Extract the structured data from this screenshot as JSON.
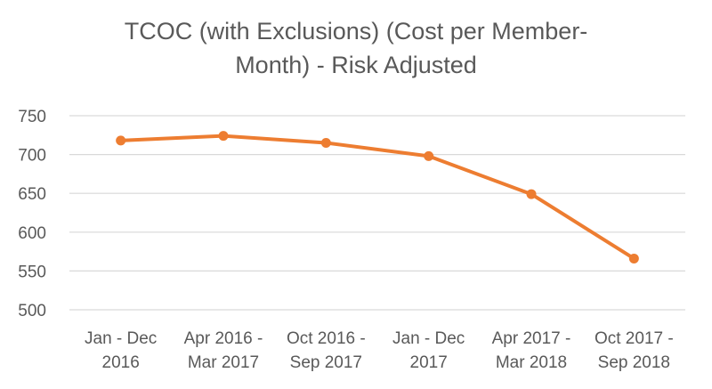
{
  "chart_data": {
    "type": "line",
    "title_lines": [
      "TCOC (with Exclusions) (Cost per Member-",
      "Month) - Risk Adjusted"
    ],
    "categories": [
      [
        "Jan - Dec",
        "2016"
      ],
      [
        "Apr 2016 -",
        "Mar 2017"
      ],
      [
        "Oct 2016 -",
        "Sep 2017"
      ],
      [
        "Jan - Dec",
        "2017"
      ],
      [
        "Apr 2017 -",
        "Mar 2018"
      ],
      [
        "Oct 2017 -",
        "Sep 2018"
      ]
    ],
    "series": [
      {
        "values": [
          718,
          724,
          715,
          698,
          649,
          566
        ]
      }
    ],
    "ylim": [
      500,
      750
    ],
    "yticks": [
      500,
      550,
      600,
      650,
      700,
      750
    ],
    "grid": true,
    "legend": "none",
    "colors": {
      "line": "#ED7D31",
      "grid": "#D9D9D9",
      "text": "#595959"
    }
  }
}
